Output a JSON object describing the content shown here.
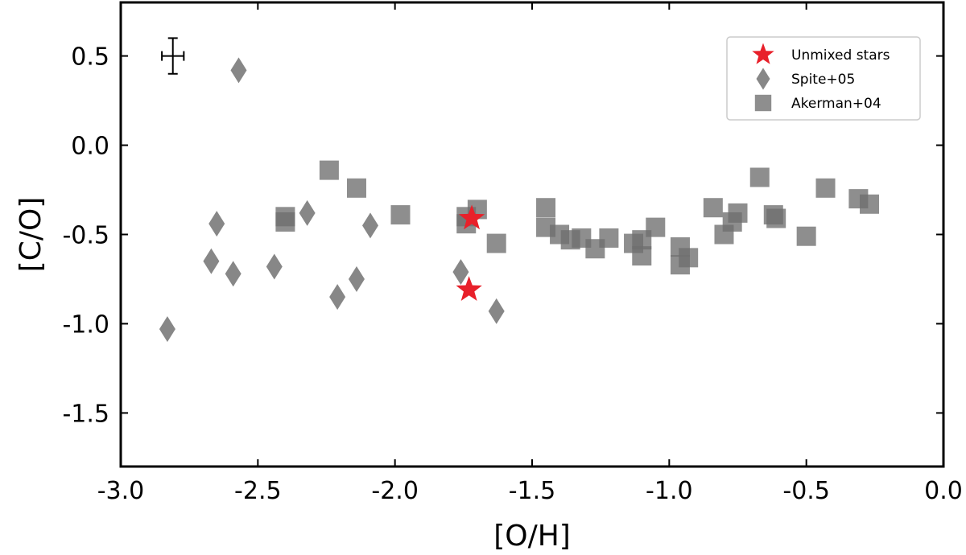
{
  "chart_data": {
    "type": "scatter",
    "xlabel": "[O/H]",
    "ylabel": "[C/O]",
    "xlim": [
      -3.0,
      0.0
    ],
    "ylim": [
      -1.8,
      0.8
    ],
    "xticks": [
      -3.0,
      -2.5,
      -2.0,
      -1.5,
      -1.0,
      -0.5,
      0.0
    ],
    "xtick_labels": [
      "-3.0",
      "-2.5",
      "-2.0",
      "-1.5",
      "-1.0",
      "-0.5",
      "0.0"
    ],
    "yticks": [
      -1.5,
      -1.0,
      -0.5,
      0.0,
      0.5
    ],
    "ytick_labels": [
      "-1.5",
      "-1.0",
      "-0.5",
      "0.0",
      "0.5"
    ],
    "grid": false,
    "legend_position": "top-right",
    "error_bar": {
      "x": -2.81,
      "y": 0.5,
      "xerr": 0.04,
      "yerr": 0.1
    },
    "series": [
      {
        "name": "Unmixed stars",
        "marker": "star",
        "color": "#e8202a",
        "points": [
          {
            "x": -1.72,
            "y": -0.41
          },
          {
            "x": -1.73,
            "y": -0.81
          }
        ]
      },
      {
        "name": "Spite+05",
        "marker": "diamond",
        "color": "#7a7a7a",
        "points": [
          {
            "x": -2.83,
            "y": -1.03
          },
          {
            "x": -2.67,
            "y": -0.65
          },
          {
            "x": -2.65,
            "y": -0.44
          },
          {
            "x": -2.59,
            "y": -0.72
          },
          {
            "x": -2.57,
            "y": 0.42
          },
          {
            "x": -2.44,
            "y": -0.68
          },
          {
            "x": -2.32,
            "y": -0.38
          },
          {
            "x": -2.21,
            "y": -0.85
          },
          {
            "x": -2.14,
            "y": -0.75
          },
          {
            "x": -2.09,
            "y": -0.45
          },
          {
            "x": -1.76,
            "y": -0.71
          },
          {
            "x": -1.63,
            "y": -0.93
          }
        ]
      },
      {
        "name": "Akerman+04",
        "marker": "square",
        "color": "#6e6e6e",
        "points": [
          {
            "x": -2.4,
            "y": -0.4
          },
          {
            "x": -2.4,
            "y": -0.43
          },
          {
            "x": -2.24,
            "y": -0.14
          },
          {
            "x": -2.14,
            "y": -0.24
          },
          {
            "x": -1.98,
            "y": -0.39
          },
          {
            "x": -1.74,
            "y": -0.4
          },
          {
            "x": -1.74,
            "y": -0.44
          },
          {
            "x": -1.7,
            "y": -0.36
          },
          {
            "x": -1.63,
            "y": -0.55
          },
          {
            "x": -1.45,
            "y": -0.35
          },
          {
            "x": -1.45,
            "y": -0.46
          },
          {
            "x": -1.4,
            "y": -0.5
          },
          {
            "x": -1.36,
            "y": -0.53
          },
          {
            "x": -1.32,
            "y": -0.52
          },
          {
            "x": -1.27,
            "y": -0.58
          },
          {
            "x": -1.22,
            "y": -0.52
          },
          {
            "x": -1.13,
            "y": -0.55
          },
          {
            "x": -1.1,
            "y": -0.53
          },
          {
            "x": -1.1,
            "y": -0.62
          },
          {
            "x": -1.05,
            "y": -0.46
          },
          {
            "x": -0.96,
            "y": -0.57
          },
          {
            "x": -0.96,
            "y": -0.67
          },
          {
            "x": -0.93,
            "y": -0.63
          },
          {
            "x": -0.84,
            "y": -0.35
          },
          {
            "x": -0.8,
            "y": -0.5
          },
          {
            "x": -0.77,
            "y": -0.43
          },
          {
            "x": -0.75,
            "y": -0.38
          },
          {
            "x": -0.67,
            "y": -0.18
          },
          {
            "x": -0.62,
            "y": -0.39
          },
          {
            "x": -0.61,
            "y": -0.41
          },
          {
            "x": -0.5,
            "y": -0.51
          },
          {
            "x": -0.43,
            "y": -0.24
          },
          {
            "x": -0.31,
            "y": -0.3
          },
          {
            "x": -0.27,
            "y": -0.33
          }
        ]
      }
    ]
  }
}
